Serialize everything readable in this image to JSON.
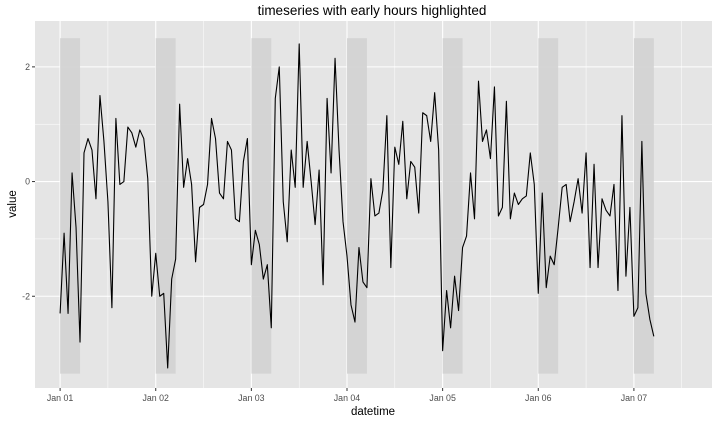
{
  "chart_data": {
    "type": "line",
    "title": "timeseries with early hours highlighted",
    "xlabel": "datetime",
    "ylabel": "value",
    "x_ticks": [
      "Jan 01",
      "Jan 02",
      "Jan 03",
      "Jan 04",
      "Jan 05",
      "Jan 06",
      "Jan 07"
    ],
    "y_ticks": [
      -2,
      0,
      2
    ],
    "xlim_hours": [
      -6.3,
      163.6
    ],
    "ylim": [
      -3.6,
      2.8
    ],
    "grid": true,
    "legend": "none",
    "colors": {
      "panel": "#e5e5e5",
      "grid_major": "#ffffff",
      "highlight": "#d2d2d2",
      "line": "#000000"
    },
    "highlight_rects": [
      {
        "start_hour": 0,
        "end_hour": 5,
        "ymin": -3.35,
        "ymax": 2.5
      },
      {
        "start_hour": 24,
        "end_hour": 29,
        "ymin": -3.35,
        "ymax": 2.5
      },
      {
        "start_hour": 48,
        "end_hour": 53,
        "ymin": -3.35,
        "ymax": 2.5
      },
      {
        "start_hour": 72,
        "end_hour": 77,
        "ymin": -3.35,
        "ymax": 2.5
      },
      {
        "start_hour": 96,
        "end_hour": 101,
        "ymin": -3.35,
        "ymax": 2.5
      },
      {
        "start_hour": 120,
        "end_hour": 125,
        "ymin": -3.35,
        "ymax": 2.5
      },
      {
        "start_hour": 144,
        "end_hour": 149,
        "ymin": -3.35,
        "ymax": 2.5
      }
    ],
    "x_start": "Jan 01 00:00",
    "x_interval_hours": 1,
    "y": [
      -2.3,
      -0.9,
      -2.3,
      0.15,
      -0.8,
      -2.8,
      0.5,
      0.75,
      0.55,
      -0.3,
      1.5,
      0.7,
      -0.35,
      -2.2,
      1.1,
      -0.05,
      0.0,
      0.95,
      0.85,
      0.6,
      0.9,
      0.75,
      0.05,
      -2.0,
      -1.25,
      -2.0,
      -1.95,
      -3.25,
      -1.7,
      -1.35,
      1.35,
      -0.1,
      0.4,
      -0.05,
      -1.4,
      -0.45,
      -0.4,
      -0.05,
      1.1,
      0.75,
      -0.2,
      -0.3,
      0.7,
      0.55,
      -0.65,
      -0.7,
      0.35,
      0.75,
      -1.45,
      -0.85,
      -1.1,
      -1.7,
      -1.45,
      -2.55,
      1.45,
      2.0,
      -0.35,
      -1.05,
      0.55,
      -0.1,
      2.4,
      -0.1,
      0.7,
      0.0,
      -0.75,
      0.2,
      -1.8,
      1.45,
      0.15,
      2.15,
      0.55,
      -0.7,
      -1.3,
      -2.15,
      -2.45,
      -1.15,
      -1.75,
      -1.85,
      0.05,
      -0.6,
      -0.55,
      -0.15,
      1.15,
      -1.5,
      0.6,
      0.3,
      1.05,
      -0.3,
      0.35,
      0.25,
      -0.55,
      1.2,
      1.15,
      0.7,
      1.55,
      0.55,
      -2.95,
      -1.9,
      -2.55,
      -1.65,
      -2.25,
      -1.15,
      -0.95,
      0.15,
      -0.65,
      1.75,
      0.7,
      0.9,
      0.4,
      1.65,
      -0.6,
      -0.45,
      1.4,
      -0.65,
      -0.2,
      -0.4,
      -0.3,
      -0.25,
      0.5,
      -0.05,
      -1.95,
      -0.2,
      -1.85,
      -1.3,
      -1.45,
      -0.8,
      -0.1,
      -0.05,
      -0.7,
      -0.35,
      0.05,
      -0.55,
      0.5,
      -1.5,
      0.3,
      -1.5,
      -0.3,
      -0.5,
      -0.6,
      -0.05,
      -1.9,
      1.15,
      -1.65,
      -0.45,
      -2.35,
      -2.2,
      0.7,
      -1.95,
      -2.4,
      -2.7
    ]
  }
}
